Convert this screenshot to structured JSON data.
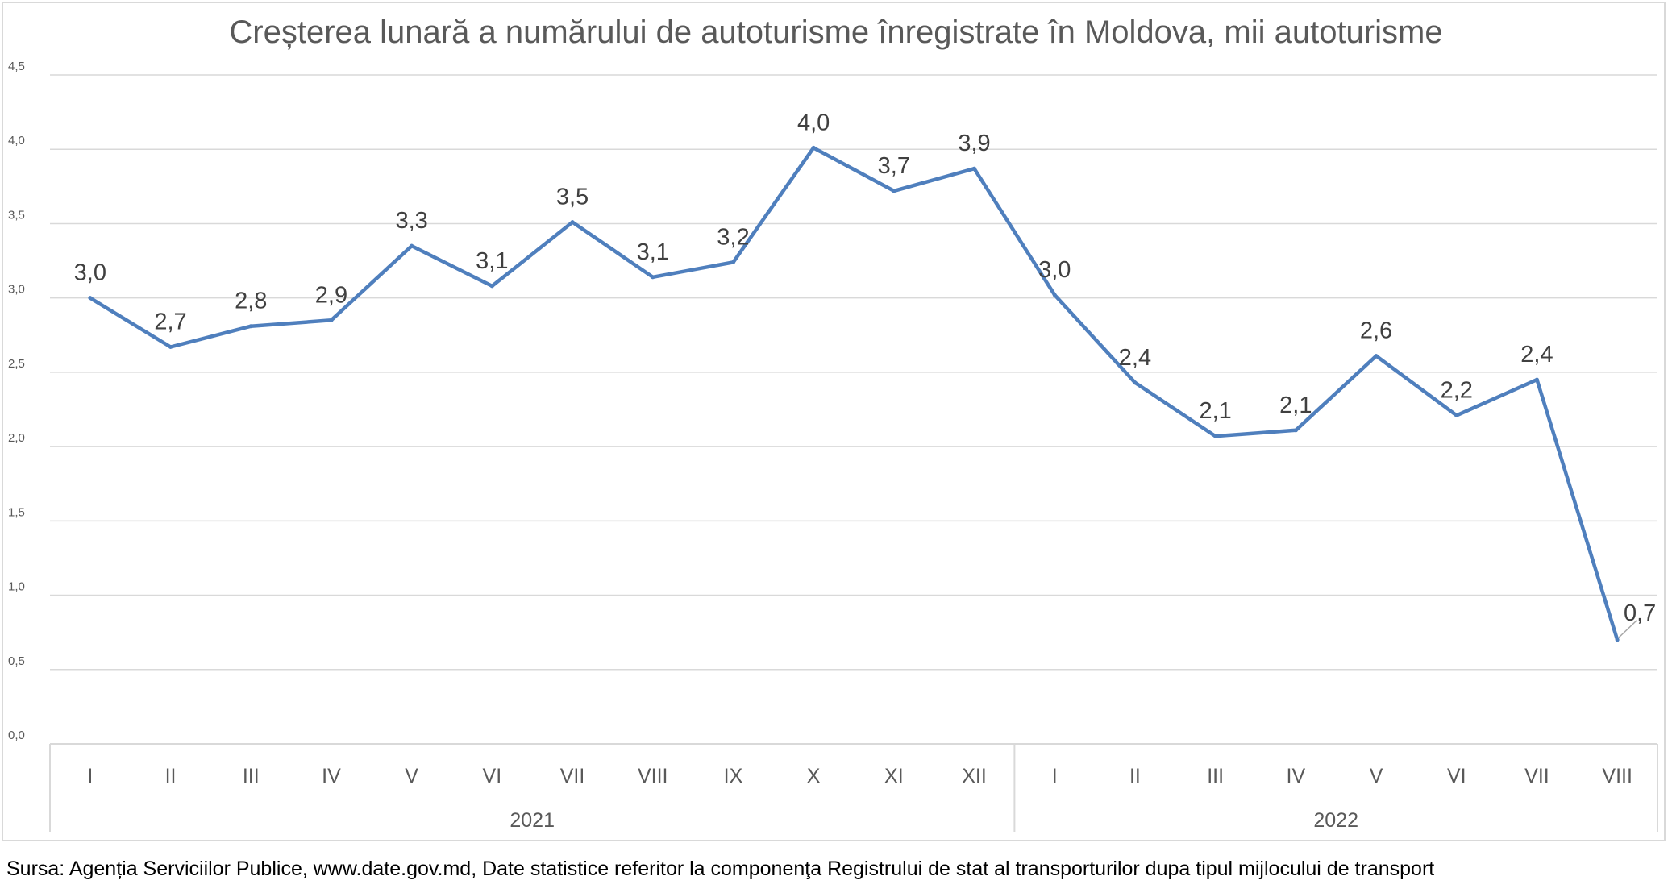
{
  "chart_data": {
    "type": "line",
    "title": "Creșterea lunară a numărului de autoturisme înregistrate în Moldova, mii autoturisme",
    "xlabel": "",
    "ylabel": "",
    "ylim": [
      0,
      4.5
    ],
    "y_ticks": [
      "0,0",
      "0,5",
      "1,0",
      "1,5",
      "2,0",
      "2,5",
      "3,0",
      "3,5",
      "4,0",
      "4,5"
    ],
    "grid": true,
    "groups": [
      {
        "label": "2021",
        "categories": [
          "I",
          "II",
          "III",
          "IV",
          "V",
          "VI",
          "VII",
          "VIII",
          "IX",
          "X",
          "XI",
          "XII"
        ]
      },
      {
        "label": "2022",
        "categories": [
          "I",
          "II",
          "III",
          "IV",
          "V",
          "VI",
          "VII",
          "VIII"
        ]
      }
    ],
    "series": [
      {
        "name": "Creșterea lunară",
        "color": "#4f7fbd",
        "values": [
          3.0,
          2.67,
          2.81,
          2.85,
          3.35,
          3.08,
          3.51,
          3.14,
          3.24,
          4.01,
          3.72,
          3.87,
          3.02,
          2.43,
          2.07,
          2.11,
          2.61,
          2.21,
          2.45,
          0.7
        ],
        "labels": [
          "3,0",
          "2,7",
          "2,8",
          "2,9",
          "3,3",
          "3,1",
          "3,5",
          "3,1",
          "3,2",
          "4,0",
          "3,7",
          "3,9",
          "3,0",
          "2,4",
          "2,1",
          "2,1",
          "2,6",
          "2,2",
          "2,4",
          "0,7"
        ]
      }
    ]
  },
  "source_note": "Sursa: Agenția Serviciilor Publice, www.date.gov.md,  Date statistice referitor la componenţa Registrului de stat al transporturilor dupa tipul mijlocului de transport"
}
